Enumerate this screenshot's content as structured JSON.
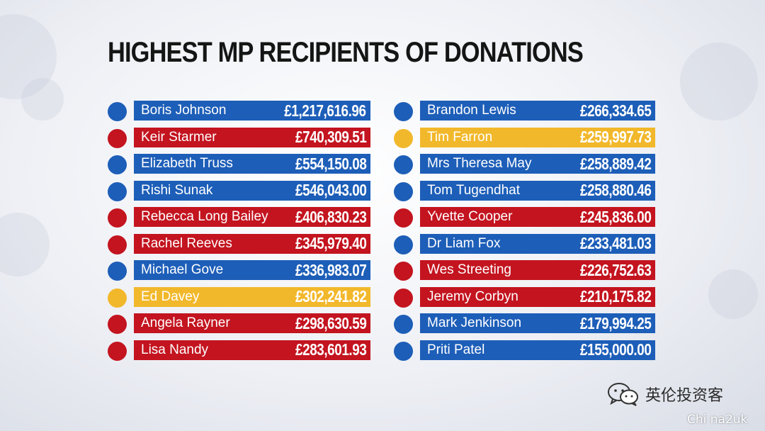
{
  "title": "HIGHEST MP RECIPIENTS OF DONATIONS",
  "colors": {
    "blue": "#1d5eb8",
    "red": "#c3141f",
    "yellow": "#f2b82b"
  },
  "left_column": [
    {
      "name": "Boris Johnson",
      "amount": "£1,217,616.96",
      "party_color": "blue"
    },
    {
      "name": "Keir Starmer",
      "amount": "£740,309.51",
      "party_color": "red"
    },
    {
      "name": "Elizabeth Truss",
      "amount": "£554,150.08",
      "party_color": "blue"
    },
    {
      "name": "Rishi Sunak",
      "amount": "£546,043.00",
      "party_color": "blue"
    },
    {
      "name": "Rebecca Long Bailey",
      "amount": "£406,830.23",
      "party_color": "red"
    },
    {
      "name": "Rachel Reeves",
      "amount": "£345,979.40",
      "party_color": "red"
    },
    {
      "name": "Michael Gove",
      "amount": "£336,983.07",
      "party_color": "blue"
    },
    {
      "name": "Ed Davey",
      "amount": "£302,241.82",
      "party_color": "yellow"
    },
    {
      "name": "Angela Rayner",
      "amount": "£298,630.59",
      "party_color": "red"
    },
    {
      "name": "Lisa Nandy",
      "amount": "£283,601.93",
      "party_color": "red"
    }
  ],
  "right_column": [
    {
      "name": "Brandon Lewis",
      "amount": "£266,334.65",
      "party_color": "blue"
    },
    {
      "name": "Tim Farron",
      "amount": "£259,997.73",
      "party_color": "yellow"
    },
    {
      "name": "Mrs Theresa May",
      "amount": "£258,889.42",
      "party_color": "blue"
    },
    {
      "name": "Tom Tugendhat",
      "amount": "£258,880.46",
      "party_color": "blue"
    },
    {
      "name": "Yvette Cooper",
      "amount": "£245,836.00",
      "party_color": "red"
    },
    {
      "name": "Dr Liam Fox",
      "amount": "£233,481.03",
      "party_color": "blue"
    },
    {
      "name": "Wes Streeting",
      "amount": "£226,752.63",
      "party_color": "red"
    },
    {
      "name": "Jeremy Corbyn",
      "amount": "£210,175.82",
      "party_color": "red"
    },
    {
      "name": "Mark Jenkinson",
      "amount": "£179,994.25",
      "party_color": "blue"
    },
    {
      "name": "Priti Patel",
      "amount": "£155,000.00",
      "party_color": "blue"
    }
  ],
  "watermark": {
    "icon": "wechat-icon",
    "text": "英伦投资客",
    "sub": "Chi na2uk"
  }
}
